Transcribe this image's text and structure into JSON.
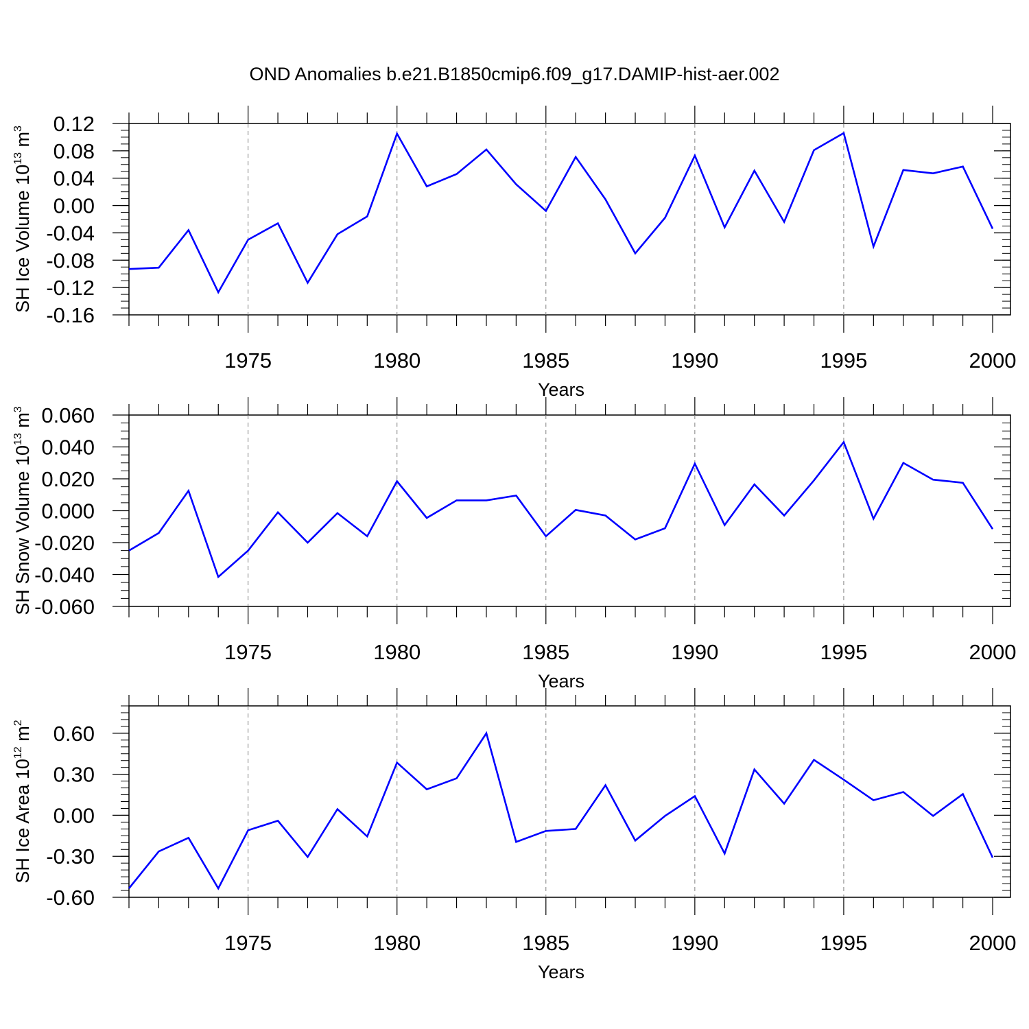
{
  "title": "OND Anomalies b.e21.B1850cmip6.f09_g17.DAMIP-hist-aer.002",
  "colors": {
    "series_line": "#0000ff",
    "axis": "#000000",
    "gridline": "#808080",
    "background": "#ffffff"
  },
  "chart_data": [
    {
      "type": "line",
      "title": "OND Anomalies b.e21.B1850cmip6.f09_g17.DAMIP-hist-aer.002",
      "xlabel": "Years",
      "ylabel": {
        "text": "SH Ice Volume 10",
        "sup": "13",
        "unit": " m",
        "unit_sup": "3"
      },
      "xlim": [
        1971,
        2000
      ],
      "ylim": [
        -0.16,
        0.12
      ],
      "x_ticks": [
        1975,
        1980,
        1985,
        1990,
        1995,
        2000
      ],
      "x_tick_labels": [
        "1975",
        "1980",
        "1985",
        "1990",
        "1995",
        "2000"
      ],
      "y_ticks": [
        -0.16,
        -0.12,
        -0.08,
        -0.04,
        0.0,
        0.04,
        0.08,
        0.12
      ],
      "y_tick_labels": [
        "-0.16",
        "-0.12",
        "-0.08",
        "-0.04",
        "0.00",
        "0.04",
        "0.08",
        "0.12"
      ],
      "y_minor_step": 0.01,
      "grid": "vertical dashed at labeled years",
      "x": [
        1971,
        1972,
        1973,
        1974,
        1975,
        1976,
        1977,
        1978,
        1979,
        1980,
        1981,
        1982,
        1983,
        1984,
        1985,
        1986,
        1987,
        1988,
        1989,
        1990,
        1991,
        1992,
        1993,
        1994,
        1995,
        1996,
        1997,
        1998,
        1999,
        2000
      ],
      "values": [
        -0.093,
        -0.091,
        -0.036,
        -0.127,
        -0.05,
        -0.026,
        -0.113,
        -0.042,
        -0.016,
        0.105,
        0.028,
        0.046,
        0.082,
        0.031,
        -0.008,
        0.071,
        0.009,
        -0.07,
        -0.018,
        0.073,
        -0.032,
        0.051,
        -0.024,
        0.081,
        0.106,
        -0.06,
        0.052,
        0.047,
        0.057,
        -0.034
      ]
    },
    {
      "type": "line",
      "xlabel": "Years",
      "ylabel": {
        "text": "SH Snow Volume 10",
        "sup": "13",
        "unit": " m",
        "unit_sup": "3"
      },
      "xlim": [
        1971,
        2000
      ],
      "ylim": [
        -0.06,
        0.06
      ],
      "x_ticks": [
        1975,
        1980,
        1985,
        1990,
        1995,
        2000
      ],
      "x_tick_labels": [
        "1975",
        "1980",
        "1985",
        "1990",
        "1995",
        "2000"
      ],
      "y_ticks": [
        -0.06,
        -0.04,
        -0.02,
        0.0,
        0.02,
        0.04,
        0.06
      ],
      "y_tick_labels": [
        "-0.060",
        "-0.040",
        "-0.020",
        "0.000",
        "0.020",
        "0.040",
        "0.060"
      ],
      "y_minor_step": 0.005,
      "grid": "vertical dashed at labeled years",
      "x": [
        1971,
        1972,
        1973,
        1974,
        1975,
        1976,
        1977,
        1978,
        1979,
        1980,
        1981,
        1982,
        1983,
        1984,
        1985,
        1986,
        1987,
        1988,
        1989,
        1990,
        1991,
        1992,
        1993,
        1994,
        1995,
        1996,
        1997,
        1998,
        1999,
        2000
      ],
      "values": [
        -0.025,
        -0.014,
        0.0125,
        -0.0415,
        -0.025,
        -0.001,
        -0.02,
        -0.0015,
        -0.016,
        0.0185,
        -0.0045,
        0.0065,
        0.0065,
        0.0095,
        -0.016,
        0.0005,
        -0.003,
        -0.018,
        -0.011,
        0.0295,
        -0.009,
        0.0165,
        -0.003,
        0.019,
        0.043,
        -0.005,
        0.03,
        0.0195,
        0.0175,
        -0.0115
      ]
    },
    {
      "type": "line",
      "xlabel": "Years",
      "ylabel": {
        "text": "SH Ice Area 10",
        "sup": "12",
        "unit": " m",
        "unit_sup": "2"
      },
      "xlim": [
        1971,
        2000
      ],
      "ylim": [
        -0.6,
        0.8
      ],
      "x_ticks": [
        1975,
        1980,
        1985,
        1990,
        1995,
        2000
      ],
      "x_tick_labels": [
        "1975",
        "1980",
        "1985",
        "1990",
        "1995",
        "2000"
      ],
      "y_ticks": [
        -0.6,
        -0.3,
        0.0,
        0.3,
        0.6
      ],
      "y_tick_labels": [
        "-0.60",
        "-0.30",
        "0.00",
        "0.30",
        "0.60"
      ],
      "y_minor_step": 0.05,
      "grid": "vertical dashed at labeled years",
      "x": [
        1971,
        1972,
        1973,
        1974,
        1975,
        1976,
        1977,
        1978,
        1979,
        1980,
        1981,
        1982,
        1983,
        1984,
        1985,
        1986,
        1987,
        1988,
        1989,
        1990,
        1991,
        1992,
        1993,
        1994,
        1995,
        1996,
        1997,
        1998,
        1999,
        2000
      ],
      "values": [
        -0.535,
        -0.265,
        -0.165,
        -0.535,
        -0.11,
        -0.04,
        -0.305,
        0.045,
        -0.155,
        0.385,
        0.19,
        0.27,
        0.6,
        -0.195,
        -0.115,
        -0.1,
        0.22,
        -0.185,
        -0.005,
        0.14,
        -0.28,
        0.335,
        0.085,
        0.405,
        0.26,
        0.11,
        0.17,
        -0.005,
        0.155,
        -0.31
      ]
    }
  ]
}
